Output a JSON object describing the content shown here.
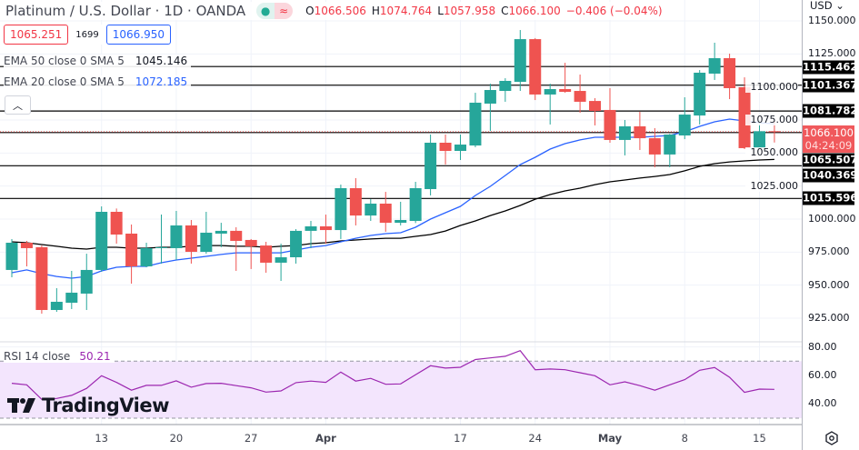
{
  "header": {
    "title": "Platinum / U.S. Dollar · 1D · OANDA",
    "market_status_icon": "green-dot-icon",
    "data_icon": "approx-wave-icon",
    "ohlc": {
      "o_label": "O",
      "o": "1066.506",
      "h_label": "H",
      "h": "1074.764",
      "l_label": "L",
      "l": "1057.958",
      "c_label": "C",
      "c": "1066.100",
      "change": "−0.406 (−0.04%)"
    }
  },
  "trade": {
    "sell": "1065.251",
    "spread": "1699",
    "buy": "1066.950"
  },
  "indicators": {
    "ema50": {
      "label": "EMA 50 close 0 SMA 5",
      "value": "1045.146",
      "color": "#000000"
    },
    "ema20": {
      "label": "EMA 20 close 0 SMA 5",
      "value": "1072.185",
      "color": "#2962ff"
    },
    "rsi": {
      "label": "RSI 14 close",
      "value": "50.21",
      "color": "#9c27b0"
    }
  },
  "collapse_icon": "chevron-up-icon",
  "axis": {
    "currency": "USD",
    "ticks": [
      "1150.000",
      "1125.000",
      "1100.000",
      "1075.000",
      "1050.000",
      "1025.000",
      "1000.000",
      "975.000",
      "950.000",
      "925.000"
    ],
    "rsi_ticks": [
      "80.00",
      "60.00",
      "40.00"
    ],
    "price_labels": [
      "1115.462",
      "1101.367",
      "1081.782",
      "1065.507",
      "1040.369",
      "1015.596"
    ],
    "current_price": "1066.100",
    "countdown": "04:24:09",
    "settings_icon": "settings-icon"
  },
  "time_labels": [
    {
      "label": "13",
      "index": 6
    },
    {
      "label": "20",
      "index": 11
    },
    {
      "label": "27",
      "index": 16
    },
    {
      "label": "Apr",
      "index": 21
    },
    {
      "label": "17",
      "index": 30
    },
    {
      "label": "24",
      "index": 35
    },
    {
      "label": "May",
      "index": 40
    },
    {
      "label": "8",
      "index": 45
    },
    {
      "label": "15",
      "index": 50
    }
  ],
  "logo": "TradingView",
  "colors": {
    "up": "#26a69a",
    "down": "#ef5350",
    "ema20": "#2962ff",
    "ema50": "#000000",
    "rsi": "#9c27b0",
    "rsi_band": "#f3e5fd"
  },
  "chart_data": {
    "type": "candlestick",
    "ylim": [
      915,
      1155
    ],
    "rsi_ylim": [
      25,
      85
    ],
    "rsi_levels": [
      70,
      30
    ],
    "hlines": [
      1115.462,
      1101.367,
      1081.782,
      1065.507,
      1040.369,
      1015.596
    ],
    "ohlc": [
      [
        961.5,
        984.9,
        956.0,
        982.1
      ],
      [
        982.1,
        983.5,
        964.2,
        978.0
      ],
      [
        978.7,
        980.0,
        928.4,
        931.2
      ],
      [
        931.2,
        947.7,
        929.8,
        937.4
      ],
      [
        936.7,
        960.8,
        931.9,
        944.3
      ],
      [
        943.6,
        973.8,
        931.2,
        961.5
      ],
      [
        961.5,
        1009.6,
        960.1,
        1005.5
      ],
      [
        1005.5,
        1008.0,
        981.4,
        988.3
      ],
      [
        989.0,
        995.9,
        951.1,
        964.2
      ],
      [
        964.2,
        982.1,
        963.5,
        978.0
      ],
      [
        978.0,
        1003.4,
        966.3,
        978.7
      ],
      [
        978.0,
        1006.2,
        969.0,
        995.2
      ],
      [
        995.2,
        999.3,
        966.3,
        975.2
      ],
      [
        975.2,
        1005.5,
        973.8,
        989.7
      ],
      [
        989.0,
        997.2,
        978.7,
        991.1
      ],
      [
        991.1,
        993.8,
        960.8,
        983.5
      ],
      [
        984.2,
        984.9,
        962.2,
        979.4
      ],
      [
        980.0,
        982.8,
        959.4,
        967.0
      ],
      [
        967.0,
        981.4,
        953.2,
        971.1
      ],
      [
        971.1,
        992.4,
        966.3,
        991.1
      ],
      [
        991.1,
        998.6,
        978.0,
        994.5
      ],
      [
        994.5,
        1003.4,
        981.4,
        991.7
      ],
      [
        991.7,
        1026.1,
        984.9,
        1023.4
      ],
      [
        1023.4,
        1031.0,
        995.2,
        1002.7
      ],
      [
        1002.7,
        1015.1,
        998.6,
        1011.7
      ],
      [
        1011.7,
        1020.6,
        990.4,
        997.2
      ],
      [
        997.2,
        1013.1,
        995.2,
        999.3
      ],
      [
        998.6,
        1028.2,
        997.0,
        1023.4
      ],
      [
        1022.7,
        1064.0,
        1017.9,
        1057.8
      ],
      [
        1057.8,
        1064.0,
        1041.3,
        1051.6
      ],
      [
        1051.6,
        1064.0,
        1044.7,
        1056.4
      ],
      [
        1055.7,
        1095.6,
        1054.4,
        1088.1
      ],
      [
        1087.4,
        1102.5,
        1066.7,
        1097.7
      ],
      [
        1097.0,
        1106.6,
        1088.8,
        1104.6
      ],
      [
        1103.9,
        1143.1,
        1097.0,
        1136.2
      ],
      [
        1136.2,
        1137.0,
        1090.1,
        1094.3
      ],
      [
        1094.3,
        1102.5,
        1071.6,
        1098.4
      ],
      [
        1098.4,
        1118.3,
        1095.6,
        1096.3
      ],
      [
        1097.0,
        1109.4,
        1080.5,
        1088.8
      ],
      [
        1089.4,
        1091.5,
        1070.9,
        1081.9
      ],
      [
        1082.6,
        1099.1,
        1057.8,
        1059.9
      ],
      [
        1059.9,
        1075.0,
        1048.2,
        1070.2
      ],
      [
        1070.2,
        1081.2,
        1052.3,
        1061.2
      ],
      [
        1061.2,
        1068.8,
        1039.2,
        1048.9
      ],
      [
        1048.9,
        1064.5,
        1039.2,
        1064.0
      ],
      [
        1063.3,
        1092.2,
        1060.5,
        1079.1
      ],
      [
        1078.4,
        1112.8,
        1071.6,
        1110.8
      ],
      [
        1110.1,
        1133.5,
        1105.3,
        1121.8
      ],
      [
        1121.8,
        1125.2,
        1090.8,
        1099.1
      ],
      [
        1099.8,
        1107.3,
        1053.0,
        1053.7
      ],
      [
        1053.7,
        1075.0,
        1053.0,
        1066.506
      ],
      [
        1066.506,
        1074.764,
        1057.958,
        1066.1
      ]
    ],
    "ema20": [
      959.4,
      961.5,
      958.7,
      956.6,
      955.3,
      956.6,
      960.8,
      963.5,
      964.2,
      964.2,
      967.0,
      969.0,
      970.4,
      971.8,
      973.2,
      974.5,
      974.5,
      974.5,
      974.5,
      976.6,
      978.7,
      980.0,
      982.8,
      985.5,
      987.6,
      989.0,
      989.7,
      993.8,
      1000.0,
      1004.8,
      1009.6,
      1017.9,
      1024.8,
      1033.0,
      1041.3,
      1046.8,
      1053.0,
      1057.1,
      1059.9,
      1061.9,
      1061.9,
      1061.9,
      1061.9,
      1062.6,
      1063.3,
      1066.1,
      1070.2,
      1073.6,
      1075.7,
      1074.3,
      1072.9,
      1072.185
    ],
    "ema50": [
      982.8,
      982.1,
      980.7,
      979.4,
      978.0,
      977.3,
      978.7,
      978.7,
      978.0,
      978.0,
      978.7,
      978.7,
      979.4,
      980.0,
      980.0,
      979.4,
      979.4,
      978.7,
      979.4,
      980.0,
      981.4,
      982.1,
      983.5,
      984.2,
      984.9,
      985.5,
      985.5,
      986.9,
      988.3,
      991.0,
      995.2,
      998.6,
      1002.7,
      1006.2,
      1010.3,
      1015.1,
      1018.6,
      1021.3,
      1023.4,
      1026.1,
      1028.2,
      1029.6,
      1031.0,
      1032.3,
      1033.7,
      1036.5,
      1039.9,
      1042.0,
      1043.3,
      1044.0,
      1044.7,
      1045.146
    ],
    "rsi": [
      54.5,
      53.4,
      43.2,
      43.8,
      46.0,
      50.9,
      59.8,
      55.1,
      49.6,
      53.0,
      53.0,
      56.2,
      51.7,
      54.3,
      54.5,
      52.8,
      51.3,
      48.3,
      49.1,
      54.9,
      56.0,
      55.1,
      62.3,
      56.0,
      57.9,
      53.8,
      54.0,
      60.4,
      66.8,
      65.1,
      65.7,
      71.1,
      72.3,
      73.4,
      77.4,
      64.0,
      64.5,
      64.0,
      61.9,
      59.8,
      53.4,
      55.5,
      52.8,
      49.6,
      53.4,
      57.0,
      63.6,
      65.5,
      58.7,
      48.1,
      50.4,
      50.21
    ]
  }
}
